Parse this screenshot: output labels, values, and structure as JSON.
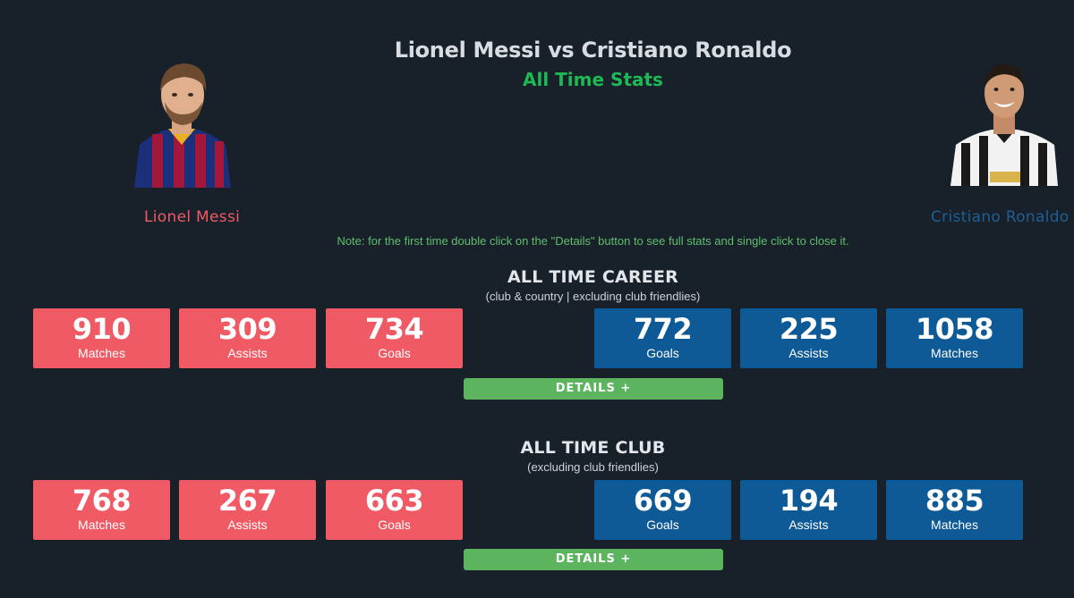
{
  "header": {
    "title": "Lionel Messi vs Cristiano Ronaldo",
    "subtitle": "All Time Stats"
  },
  "players": {
    "left": {
      "name": "Lionel Messi",
      "color": "#ef5a65"
    },
    "right": {
      "name": "Cristiano Ronaldo",
      "color": "#0e5a96"
    }
  },
  "note": "Note: for the first time double click on the \"Details\" button to see full stats and single click to close it.",
  "sections": [
    {
      "title": "ALL TIME CAREER",
      "subtitle": "(club & country | excluding club friendlies)",
      "messi": [
        {
          "value": "910",
          "label": "Matches"
        },
        {
          "value": "309",
          "label": "Assists"
        },
        {
          "value": "734",
          "label": "Goals"
        }
      ],
      "ronaldo": [
        {
          "value": "772",
          "label": "Goals"
        },
        {
          "value": "225",
          "label": "Assists"
        },
        {
          "value": "1058",
          "label": "Matches"
        }
      ],
      "details_label": "DETAILS +"
    },
    {
      "title": "ALL TIME CLUB",
      "subtitle": "(excluding club friendlies)",
      "messi": [
        {
          "value": "768",
          "label": "Matches"
        },
        {
          "value": "267",
          "label": "Assists"
        },
        {
          "value": "663",
          "label": "Goals"
        }
      ],
      "ronaldo": [
        {
          "value": "669",
          "label": "Goals"
        },
        {
          "value": "194",
          "label": "Assists"
        },
        {
          "value": "885",
          "label": "Matches"
        }
      ],
      "details_label": "DETAILS +"
    }
  ],
  "colors": {
    "background": "#18202a",
    "messi_accent": "#ef5a65",
    "ronaldo_accent": "#0e5a96",
    "details_button": "#5cb45f",
    "subtitle_green": "#1db954"
  }
}
